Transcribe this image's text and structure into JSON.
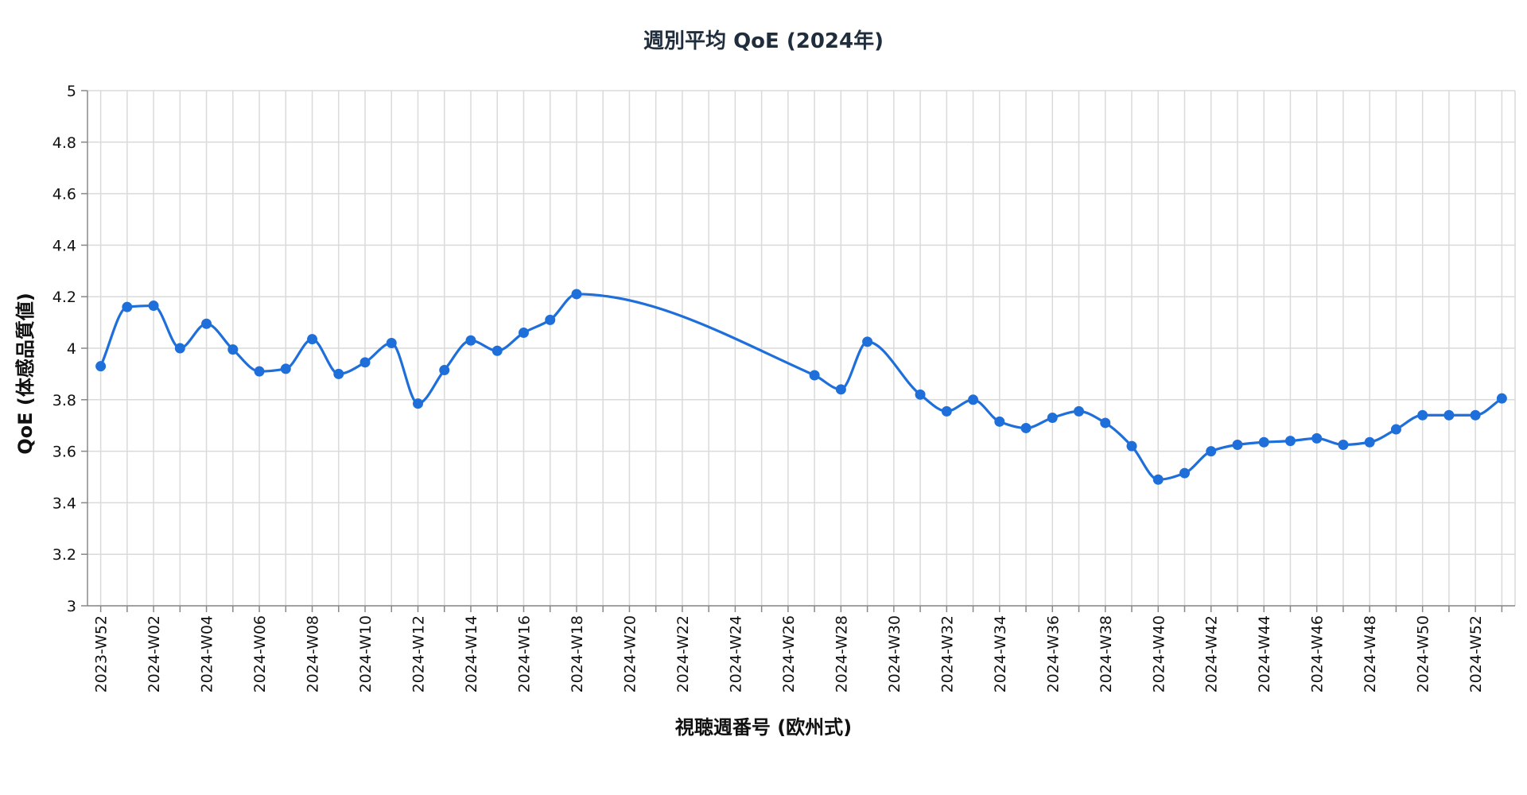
{
  "chart_data": {
    "type": "line",
    "title": "週別平均 QoE (2024年)",
    "xlabel": "視聴週番号 (欧州式)",
    "ylabel": "QoE (体感品質値)",
    "ylim": [
      3,
      5
    ],
    "yticks": [
      3,
      3.2,
      3.4,
      3.6,
      3.8,
      4,
      4.2,
      4.4,
      4.6,
      4.8,
      5
    ],
    "ytick_labels": [
      "3",
      "3.2",
      "3.4",
      "3.6",
      "3.8",
      "4",
      "4.2",
      "4.4",
      "4.6",
      "4.8",
      "5"
    ],
    "x_categories": [
      "2023-W52",
      "2024-W01",
      "2024-W02",
      "2024-W03",
      "2024-W04",
      "2024-W05",
      "2024-W06",
      "2024-W07",
      "2024-W08",
      "2024-W09",
      "2024-W10",
      "2024-W11",
      "2024-W12",
      "2024-W13",
      "2024-W14",
      "2024-W15",
      "2024-W16",
      "2024-W17",
      "2024-W18",
      "2024-W19",
      "2024-W20",
      "2024-W21",
      "2024-W22",
      "2024-W23",
      "2024-W24",
      "2024-W25",
      "2024-W26",
      "2024-W27",
      "2024-W28",
      "2024-W29",
      "2024-W30",
      "2024-W31",
      "2024-W32",
      "2024-W33",
      "2024-W34",
      "2024-W35",
      "2024-W36",
      "2024-W37",
      "2024-W38",
      "2024-W39",
      "2024-W40",
      "2024-W41",
      "2024-W42",
      "2024-W43",
      "2024-W44",
      "2024-W45",
      "2024-W46",
      "2024-W47",
      "2024-W48",
      "2024-W49",
      "2024-W50",
      "2024-W51",
      "2024-W52",
      "2024-W53"
    ],
    "x_tick_labels": [
      "2023-W52",
      "2024-W02",
      "2024-W04",
      "2024-W06",
      "2024-W08",
      "2024-W10",
      "2024-W12",
      "2024-W14",
      "2024-W16",
      "2024-W18",
      "2024-W20",
      "2024-W22",
      "2024-W24",
      "2024-W26",
      "2024-W28",
      "2024-W30",
      "2024-W32",
      "2024-W34",
      "2024-W36",
      "2024-W38",
      "2024-W40",
      "2024-W42",
      "2024-W44",
      "2024-W46",
      "2024-W48",
      "2024-W50",
      "2024-W52"
    ],
    "grid": true,
    "series": [
      {
        "color": "#1f6fdb",
        "points": [
          {
            "x": "2023-W52",
            "y": 3.93
          },
          {
            "x": "2024-W01",
            "y": 4.16
          },
          {
            "x": "2024-W02",
            "y": 4.165
          },
          {
            "x": "2024-W03",
            "y": 4.0
          },
          {
            "x": "2024-W04",
            "y": 4.095
          },
          {
            "x": "2024-W05",
            "y": 3.995
          },
          {
            "x": "2024-W06",
            "y": 3.91
          },
          {
            "x": "2024-W07",
            "y": 3.92
          },
          {
            "x": "2024-W08",
            "y": 4.035
          },
          {
            "x": "2024-W09",
            "y": 3.9
          },
          {
            "x": "2024-W10",
            "y": 3.945
          },
          {
            "x": "2024-W11",
            "y": 4.02
          },
          {
            "x": "2024-W12",
            "y": 3.785
          },
          {
            "x": "2024-W13",
            "y": 3.915
          },
          {
            "x": "2024-W14",
            "y": 4.03
          },
          {
            "x": "2024-W15",
            "y": 3.99
          },
          {
            "x": "2024-W16",
            "y": 4.06
          },
          {
            "x": "2024-W17",
            "y": 4.11
          },
          {
            "x": "2024-W18",
            "y": 4.21
          },
          {
            "x": "2024-W27",
            "y": 3.895
          },
          {
            "x": "2024-W28",
            "y": 3.84
          },
          {
            "x": "2024-W29",
            "y": 4.025
          },
          {
            "x": "2024-W31",
            "y": 3.82
          },
          {
            "x": "2024-W32",
            "y": 3.755
          },
          {
            "x": "2024-W33",
            "y": 3.8
          },
          {
            "x": "2024-W34",
            "y": 3.715
          },
          {
            "x": "2024-W35",
            "y": 3.69
          },
          {
            "x": "2024-W36",
            "y": 3.73
          },
          {
            "x": "2024-W37",
            "y": 3.755
          },
          {
            "x": "2024-W38",
            "y": 3.71
          },
          {
            "x": "2024-W39",
            "y": 3.62
          },
          {
            "x": "2024-W40",
            "y": 3.49
          },
          {
            "x": "2024-W41",
            "y": 3.515
          },
          {
            "x": "2024-W42",
            "y": 3.6
          },
          {
            "x": "2024-W43",
            "y": 3.625
          },
          {
            "x": "2024-W44",
            "y": 3.635
          },
          {
            "x": "2024-W45",
            "y": 3.64
          },
          {
            "x": "2024-W46",
            "y": 3.65
          },
          {
            "x": "2024-W47",
            "y": 3.625
          },
          {
            "x": "2024-W48",
            "y": 3.635
          },
          {
            "x": "2024-W49",
            "y": 3.685
          },
          {
            "x": "2024-W50",
            "y": 3.74
          },
          {
            "x": "2024-W51",
            "y": 3.74
          },
          {
            "x": "2024-W52",
            "y": 3.74
          },
          {
            "x": "2024-W53",
            "y": 3.805
          }
        ]
      }
    ]
  }
}
